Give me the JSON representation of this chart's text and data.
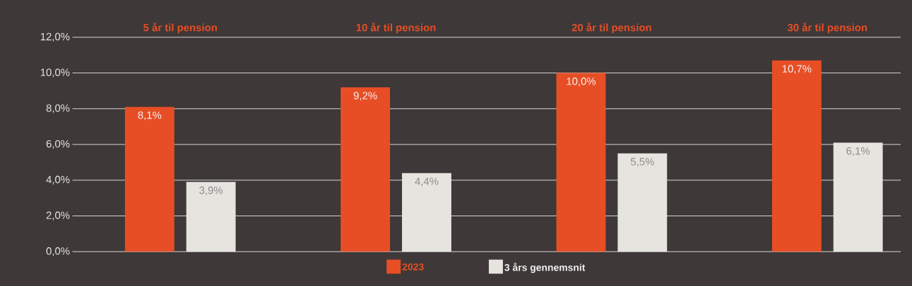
{
  "chart_data": {
    "type": "bar",
    "categories": [
      "5 år til pension",
      "10 år til pension",
      "20 år til pension",
      "30 år til pension"
    ],
    "series": [
      {
        "name": "2023",
        "color": "#e84e26",
        "values": [
          8.1,
          9.2,
          10.0,
          10.7
        ],
        "value_labels": [
          "8,1%",
          "9,2%",
          "10,0%",
          "10,7%"
        ]
      },
      {
        "name": "3 års gennemsnit",
        "color": "#e6e4df",
        "values": [
          3.9,
          4.4,
          5.5,
          6.1
        ],
        "value_labels": [
          "3,9%",
          "4,4%",
          "5,5%",
          "6,1%"
        ]
      }
    ],
    "ylim": [
      0,
      12
    ],
    "yticks": [
      {
        "value": 0,
        "label": "0,0%"
      },
      {
        "value": 2,
        "label": "2,0%"
      },
      {
        "value": 4,
        "label": "4,0%"
      },
      {
        "value": 6,
        "label": "6,0%"
      },
      {
        "value": 8,
        "label": "8,0%"
      },
      {
        "value": 10,
        "label": "10,0%"
      },
      {
        "value": 12,
        "label": "12,0%"
      }
    ],
    "grid": "y",
    "legend": "bottom"
  }
}
